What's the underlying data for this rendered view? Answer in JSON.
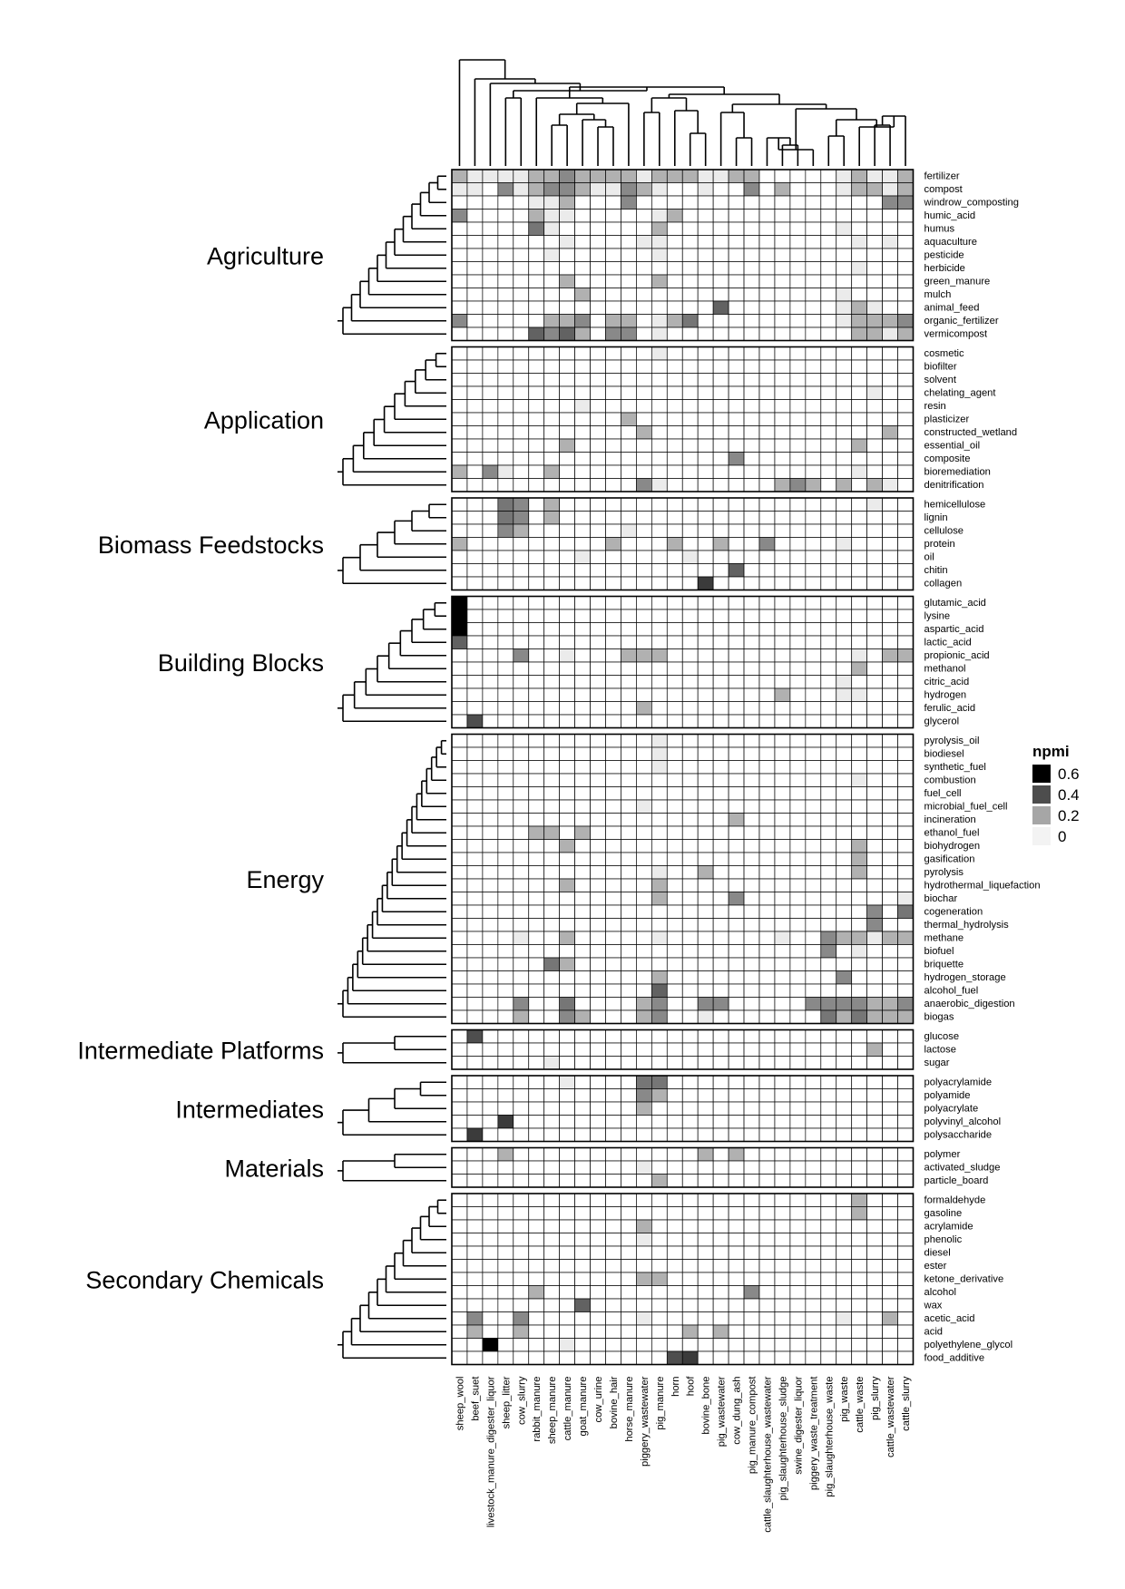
{
  "chart_data": {
    "type": "heatmap",
    "columns": [
      "sheep_wool",
      "beef_suet",
      "livestock_manure_digester_liquor",
      "sheep_litter",
      "cow_slurry",
      "rabbit_manure",
      "sheep_manure",
      "cattle_manure",
      "goat_manure",
      "cow_urine",
      "bovine_hair",
      "horse_manure",
      "piggery_wastewater",
      "pig_manure",
      "horn",
      "hoof",
      "bovine_bone",
      "pig_wastewater",
      "cow_dung_ash",
      "pig_manure_compost",
      "cattle_slaughterhouse_wastewater",
      "pig_slaughterhouse_sludge",
      "swine_digester_liquor",
      "piggery_waste_treatment",
      "pig_slaughterhouse_waste",
      "pig_waste",
      "cattle_waste",
      "pig_slurry",
      "cattle_wastewater",
      "cattle_slurry"
    ],
    "groups": [
      {
        "name": "Agriculture",
        "rows": [
          "fertilizer",
          "compost",
          "windrow_composting",
          "humic_acid",
          "humus",
          "aquaculture",
          "pesticide",
          "herbicide",
          "green_manure",
          "mulch",
          "animal_feed",
          "organic_fertilizer",
          "vermicompost"
        ]
      },
      {
        "name": "Application",
        "rows": [
          "cosmetic",
          "biofilter",
          "solvent",
          "chelating_agent",
          "resin",
          "plasticizer",
          "constructed_wetland",
          "essential_oil",
          "composite",
          "bioremediation",
          "denitrification"
        ]
      },
      {
        "name": "Biomass Feedstocks",
        "rows": [
          "hemicellulose",
          "lignin",
          "cellulose",
          "protein",
          "oil",
          "chitin",
          "collagen"
        ]
      },
      {
        "name": "Building Blocks",
        "rows": [
          "glutamic_acid",
          "lysine",
          "aspartic_acid",
          "lactic_acid",
          "propionic_acid",
          "methanol",
          "citric_acid",
          "hydrogen",
          "ferulic_acid",
          "glycerol"
        ]
      },
      {
        "name": "Energy",
        "rows": [
          "pyrolysis_oil",
          "biodiesel",
          "synthetic_fuel",
          "combustion",
          "fuel_cell",
          "microbial_fuel_cell",
          "incineration",
          "ethanol_fuel",
          "biohydrogen",
          "gasification",
          "pyrolysis",
          "hydrothermal_liquefaction",
          "biochar",
          "cogeneration",
          "thermal_hydrolysis",
          "methane",
          "biofuel",
          "briquette",
          "hydrogen_storage",
          "alcohol_fuel",
          "anaerobic_digestion",
          "biogas"
        ]
      },
      {
        "name": "Intermediate Platforms",
        "rows": [
          "glucose",
          "lactose",
          "sugar"
        ]
      },
      {
        "name": "Intermediates",
        "rows": [
          "polyacrylamide",
          "polyamide",
          "polyacrylate",
          "polyvinyl_alcohol",
          "polysaccharide"
        ]
      },
      {
        "name": "Materials",
        "rows": [
          "polymer",
          "activated_sludge",
          "particle_board"
        ]
      },
      {
        "name": "Secondary Chemicals",
        "rows": [
          "formaldehyde",
          "gasoline",
          "acrylamide",
          "phenolic",
          "diesel",
          "ester",
          "ketone_derivative",
          "alcohol",
          "wax",
          "acetic_acid",
          "acid",
          "polyethylene_glycol",
          "food_additive"
        ]
      }
    ],
    "values": {
      "fertilizer": {
        "sheep_wool": 0.2,
        "beef_suet": 0.05,
        "livestock_manure_digester_liquor": 0.05,
        "sheep_litter": 0.05,
        "cow_slurry": 0.05,
        "rabbit_manure": 0.2,
        "sheep_manure": 0.2,
        "cattle_manure": 0.3,
        "goat_manure": 0.2,
        "cow_urine": 0.2,
        "bovine_hair": 0.2,
        "horse_manure": 0.2,
        "piggery_wastewater": 0.05,
        "pig_manure": 0.2,
        "horn": 0.2,
        "hoof": 0.2,
        "bovine_bone": 0.05,
        "pig_wastewater": 0.05,
        "cow_dung_ash": 0.2,
        "pig_manure_compost": 0.2,
        "pig_waste": 0.05,
        "cattle_waste": 0.2,
        "pig_slurry": 0.05,
        "cattle_wastewater": 0.05,
        "cattle_slurry": 0.2
      },
      "compost": {
        "sheep_wool": 0.05,
        "beef_suet": 0.05,
        "sheep_litter": 0.3,
        "cow_slurry": 0.05,
        "rabbit_manure": 0.2,
        "sheep_manure": 0.3,
        "cattle_manure": 0.3,
        "goat_manure": 0.2,
        "cow_urine": 0.05,
        "bovine_hair": 0.05,
        "horse_manure": 0.3,
        "piggery_wastewater": 0.2,
        "pig_manure": 0.05,
        "bovine_bone": 0.05,
        "pig_manure_compost": 0.3,
        "pig_slaughterhouse_sludge": 0.2,
        "pig_waste": 0.05,
        "cattle_waste": 0.2,
        "pig_slurry": 0.2,
        "cattle_wastewater": 0.05,
        "cattle_slurry": 0.2
      },
      "windrow_composting": {
        "rabbit_manure": 0.05,
        "sheep_manure": 0.05,
        "cattle_manure": 0.2,
        "horse_manure": 0.3,
        "cattle_wastewater": 0.3,
        "cattle_slurry": 0.3
      },
      "humic_acid": {
        "sheep_wool": 0.3,
        "rabbit_manure": 0.2,
        "sheep_manure": 0.05,
        "cattle_manure": 0.05,
        "pig_manure": 0.05,
        "horn": 0.2
      },
      "humus": {
        "rabbit_manure": 0.35,
        "sheep_manure": 0.05,
        "pig_manure": 0.2,
        "pig_waste": 0.05
      },
      "aquaculture": {
        "cattle_manure": 0.05,
        "pig_manure": 0.05,
        "piggery_wastewater": 0.05,
        "cattle_waste": 0.05,
        "cattle_wastewater": 0.05
      },
      "pesticide": {
        "sheep_manure": 0.05,
        "pig_manure": 0.05
      },
      "herbicide": {
        "cattle_waste": 0.05
      },
      "green_manure": {
        "cattle_manure": 0.2,
        "pig_manure": 0.2
      },
      "mulch": {
        "goat_manure": 0.2,
        "pig_waste": 0.05
      },
      "animal_feed": {
        "pig_wastewater": 0.4,
        "pig_waste": 0.05,
        "cattle_waste": 0.2,
        "pig_slurry": 0.05
      },
      "organic_fertilizer": {
        "sheep_wool": 0.3,
        "sheep_manure": 0.2,
        "cattle_manure": 0.2,
        "goat_manure": 0.3,
        "bovine_hair": 0.2,
        "horse_manure": 0.2,
        "pig_manure": 0.05,
        "horn": 0.2,
        "hoof": 0.35,
        "pig_waste": 0.05,
        "cattle_waste": 0.2,
        "pig_slurry": 0.2,
        "cattle_wastewater": 0.2,
        "cattle_slurry": 0.3
      },
      "vermicompost": {
        "rabbit_manure": 0.4,
        "sheep_manure": 0.3,
        "cattle_manure": 0.4,
        "goat_manure": 0.2,
        "bovine_hair": 0.3,
        "horse_manure": 0.3,
        "pig_manure": 0.05,
        "cattle_waste": 0.2,
        "pig_slurry": 0.2,
        "cattle_wastewater": 0.05,
        "cattle_slurry": 0.2
      },
      "cosmetic": {
        "pig_manure": 0.05
      },
      "biofilter": {},
      "solvent": {},
      "chelating_agent": {
        "pig_slurry": 0.05
      },
      "resin": {
        "goat_manure": 0.05
      },
      "plasticizer": {
        "horse_manure": 0.2
      },
      "constructed_wetland": {
        "piggery_wastewater": 0.2,
        "cattle_wastewater": 0.2
      },
      "essential_oil": {
        "cattle_manure": 0.2,
        "cattle_waste": 0.2
      },
      "composite": {
        "cow_dung_ash": 0.3
      },
      "bioremediation": {
        "sheep_wool": 0.2,
        "livestock_manure_digester_liquor": 0.3,
        "sheep_litter": 0.05,
        "sheep_manure": 0.2,
        "cattle_waste": 0.05
      },
      "denitrification": {
        "piggery_wastewater": 0.3,
        "pig_manure": 0.05,
        "pig_slaughterhouse_sludge": 0.2,
        "swine_digester_liquor": 0.3,
        "piggery_waste_treatment": 0.2,
        "pig_waste": 0.2,
        "pig_slurry": 0.2,
        "cattle_wastewater": 0.05
      },
      "hemicellulose": {
        "sheep_litter": 0.35,
        "cow_slurry": 0.3,
        "sheep_manure": 0.2,
        "pig_slurry": 0.05
      },
      "lignin": {
        "sheep_litter": 0.35,
        "cow_slurry": 0.3,
        "sheep_manure": 0.2
      },
      "cellulose": {
        "sheep_litter": 0.3,
        "cow_slurry": 0.2,
        "horse_manure": 0.05
      },
      "protein": {
        "sheep_wool": 0.2,
        "bovine_hair": 0.2,
        "horn": 0.2,
        "pig_wastewater": 0.2,
        "cattle_slaughterhouse_wastewater": 0.3,
        "pig_waste": 0.05
      },
      "oil": {
        "goat_manure": 0.05,
        "hoof": 0.05
      },
      "chitin": {
        "cow_dung_ash": 0.4
      },
      "collagen": {
        "bovine_bone": 0.5
      },
      "glutamic_acid": {
        "sheep_wool": 0.65
      },
      "lysine": {
        "sheep_wool": 0.65
      },
      "aspartic_acid": {
        "sheep_wool": 0.65
      },
      "lactic_acid": {
        "sheep_wool": 0.4
      },
      "propionic_acid": {
        "cow_slurry": 0.3,
        "cattle_manure": 0.05,
        "horse_manure": 0.2,
        "piggery_wastewater": 0.2,
        "pig_manure": 0.2,
        "cattle_waste": 0.05,
        "cattle_wastewater": 0.2,
        "cattle_slurry": 0.2
      },
      "methanol": {
        "cattle_waste": 0.2
      },
      "citric_acid": {
        "pig_waste": 0.05
      },
      "hydrogen": {
        "pig_slaughterhouse_sludge": 0.2,
        "pig_waste": 0.05,
        "cattle_waste": 0.05
      },
      "ferulic_acid": {
        "piggery_wastewater": 0.2
      },
      "glycerol": {
        "beef_suet": 0.45
      },
      "pyrolysis_oil": {
        "pig_manure": 0.05
      },
      "biodiesel": {
        "pig_manure": 0.05
      },
      "synthetic_fuel": {
        "pig_manure": 0.05
      },
      "combustion": {
        "cattle_waste": 0.05
      },
      "fuel_cell": {},
      "microbial_fuel_cell": {
        "piggery_wastewater": 0.05
      },
      "incineration": {
        "cow_dung_ash": 0.2
      },
      "ethanol_fuel": {
        "rabbit_manure": 0.2,
        "sheep_manure": 0.2,
        "goat_manure": 0.2
      },
      "biohydrogen": {
        "cattle_manure": 0.2,
        "cattle_waste": 0.2
      },
      "gasification": {
        "cattle_waste": 0.2
      },
      "pyrolysis": {
        "pig_manure": 0.05,
        "bovine_bone": 0.2,
        "cattle_waste": 0.2
      },
      "hydrothermal_liquefaction": {
        "cattle_manure": 0.2,
        "pig_manure": 0.2
      },
      "biochar": {
        "pig_manure": 0.2,
        "cow_dung_ash": 0.3,
        "cattle_slurry": 0.05
      },
      "cogeneration": {
        "pig_slurry": 0.3,
        "cattle_slurry": 0.35
      },
      "thermal_hydrolysis": {
        "pig_slurry": 0.3
      },
      "methane": {
        "cow_slurry": 0.05,
        "cattle_manure": 0.2,
        "pig_manure": 0.05,
        "pig_slaughterhouse_sludge": 0.05,
        "pig_slaughterhouse_waste": 0.3,
        "pig_waste": 0.2,
        "cattle_waste": 0.2,
        "pig_slurry": 0.05,
        "cattle_wastewater": 0.2,
        "cattle_slurry": 0.2
      },
      "biofuel": {
        "pig_slaughterhouse_waste": 0.3,
        "cattle_waste": 0.05
      },
      "briquette": {
        "sheep_manure": 0.35,
        "cattle_manure": 0.2
      },
      "hydrogen_storage": {
        "pig_manure": 0.2,
        "pig_waste": 0.3
      },
      "alcohol_fuel": {
        "pig_manure": 0.4
      },
      "anaerobic_digestion": {
        "cow_slurry": 0.3,
        "cattle_manure": 0.35,
        "piggery_wastewater": 0.2,
        "pig_manure": 0.3,
        "bovine_bone": 0.3,
        "pig_wastewater": 0.3,
        "piggery_waste_treatment": 0.3,
        "pig_slaughterhouse_waste": 0.3,
        "pig_waste": 0.3,
        "cattle_waste": 0.3,
        "pig_slurry": 0.2,
        "cattle_wastewater": 0.2,
        "cattle_slurry": 0.3
      },
      "biogas": {
        "cow_slurry": 0.2,
        "cattle_manure": 0.3,
        "goat_manure": 0.2,
        "piggery_wastewater": 0.2,
        "pig_manure": 0.3,
        "bovine_bone": 0.05,
        "pig_slaughterhouse_waste": 0.35,
        "pig_waste": 0.2,
        "cattle_waste": 0.35,
        "pig_slurry": 0.2,
        "cattle_wastewater": 0.2,
        "cattle_slurry": 0.2
      },
      "glucose": {
        "beef_suet": 0.45
      },
      "lactose": {
        "pig_slurry": 0.2
      },
      "sugar": {
        "sheep_manure": 0.05
      },
      "polyacrylamide": {
        "cattle_manure": 0.05,
        "piggery_wastewater": 0.35,
        "pig_manure": 0.35
      },
      "polyamide": {
        "piggery_wastewater": 0.3,
        "pig_manure": 0.2
      },
      "polyacrylate": {
        "piggery_wastewater": 0.2
      },
      "polyvinyl_alcohol": {
        "sheep_litter": 0.5
      },
      "polysaccharide": {
        "beef_suet": 0.5
      },
      "polymer": {
        "sheep_litter": 0.2,
        "bovine_bone": 0.2,
        "cow_dung_ash": 0.2
      },
      "activated_sludge": {
        "piggery_wastewater": 0.05
      },
      "particle_board": {
        "pig_manure": 0.2
      },
      "formaldehyde": {
        "cattle_waste": 0.2
      },
      "gasoline": {
        "cattle_waste": 0.2
      },
      "acrylamide": {
        "piggery_wastewater": 0.2
      },
      "phenolic": {
        "piggery_wastewater": 0.05
      },
      "diesel": {},
      "ester": {},
      "ketone_derivative": {
        "piggery_wastewater": 0.2,
        "pig_manure": 0.2
      },
      "alcohol": {
        "rabbit_manure": 0.2,
        "pig_manure_compost": 0.3
      },
      "wax": {
        "goat_manure": 0.4
      },
      "acetic_acid": {
        "beef_suet": 0.3,
        "cow_slurry": 0.3,
        "piggery_wastewater": 0.05,
        "pig_waste": 0.05,
        "cattle_wastewater": 0.2
      },
      "acid": {
        "beef_suet": 0.2,
        "cow_slurry": 0.2,
        "hoof": 0.2,
        "pig_wastewater": 0.2
      },
      "polyethylene_glycol": {
        "livestock_manure_digester_liquor": 0.65,
        "cattle_manure": 0.05
      },
      "food_additive": {
        "horn": 0.45,
        "hoof": 0.5
      }
    },
    "legend": {
      "title": "npmi",
      "ticks": [
        "0.6",
        "0.4",
        "0.2",
        "0"
      ],
      "tick_values": [
        0.6,
        0.4,
        0.2,
        0
      ],
      "placement": "right"
    },
    "colors": {
      "low": "#ffffff",
      "high": "#000000"
    }
  }
}
